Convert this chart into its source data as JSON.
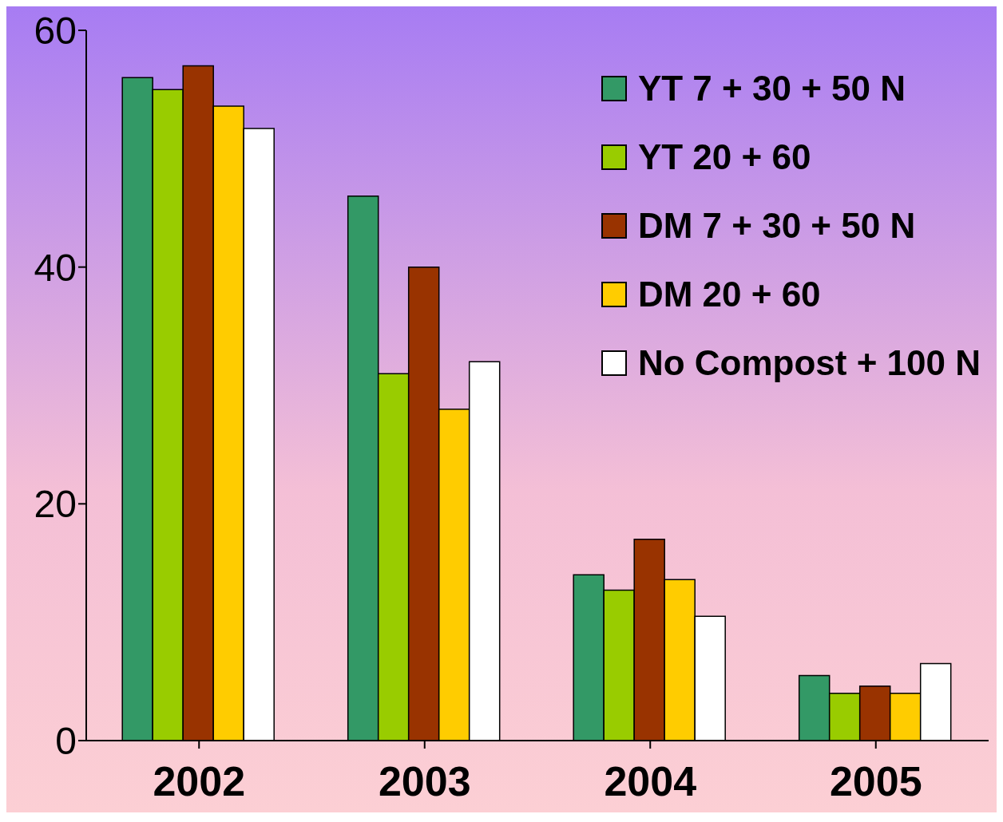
{
  "chart_data": {
    "type": "bar",
    "categories": [
      "2002",
      "2003",
      "2004",
      "2005"
    ],
    "series": [
      {
        "name": "YT 7 + 30 + 50 N",
        "color": "#339966",
        "values": [
          56,
          46,
          14,
          5.5
        ]
      },
      {
        "name": "YT 20 + 60",
        "color": "#99cc00",
        "values": [
          55,
          31,
          12.7,
          4
        ]
      },
      {
        "name": "DM 7 + 30 + 50 N",
        "color": "#993300",
        "values": [
          57,
          40,
          17,
          4.6
        ]
      },
      {
        "name": "DM 20 + 60",
        "color": "#ffcc00",
        "values": [
          53.6,
          28,
          13.6,
          4
        ]
      },
      {
        "name": "No Compost + 100 N",
        "color": "#ffffff",
        "values": [
          51.7,
          32,
          10.5,
          6.5
        ]
      }
    ],
    "ylim": [
      0,
      60
    ],
    "yticks": [
      0,
      20,
      40,
      60
    ],
    "grid": false,
    "legend": "top right"
  }
}
